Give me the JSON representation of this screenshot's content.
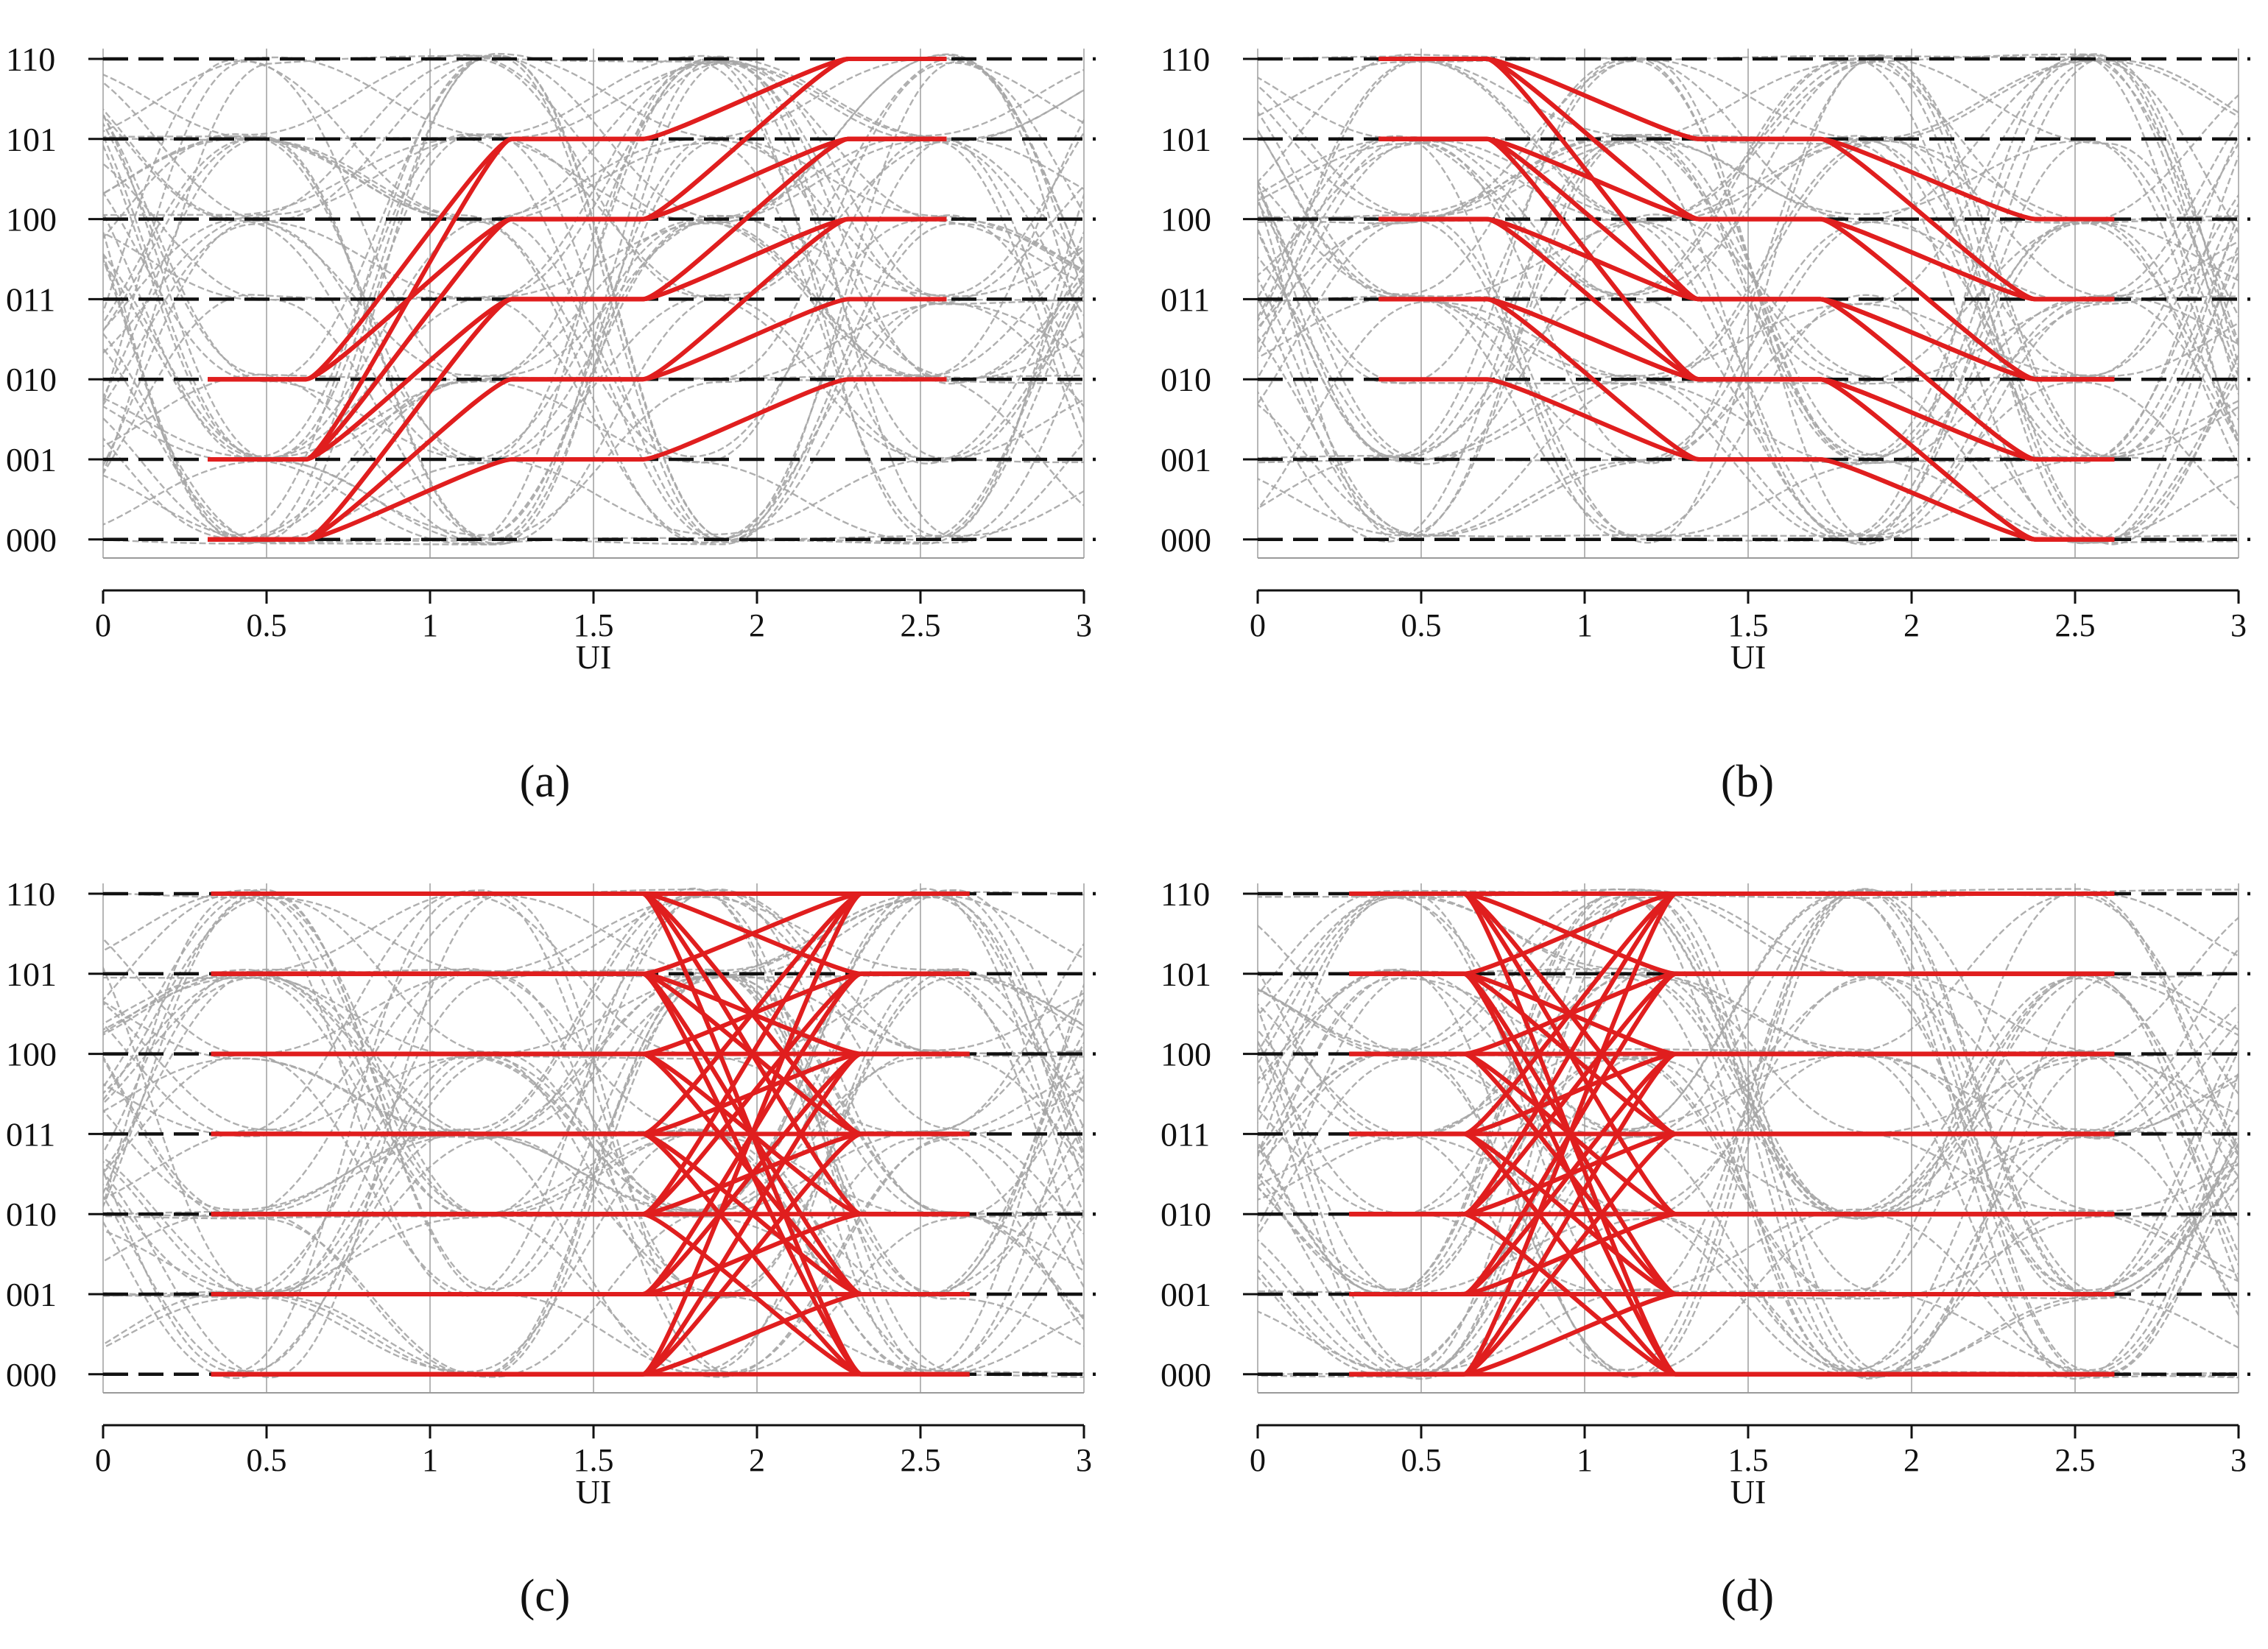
{
  "figure": {
    "captions": [
      "(a)",
      "(b)",
      "(c)",
      "(d)"
    ]
  },
  "chart_data": [
    {
      "panel": "(a)",
      "type": "line",
      "title": "",
      "xlabel": "UI",
      "ylabel": "",
      "xlim": [
        0,
        3
      ],
      "xticks": [
        0,
        0.5,
        1,
        1.5,
        2,
        2.5,
        3
      ],
      "xtick_labels": [
        "0",
        "0.5",
        "1",
        "1.5",
        "2",
        "2.5",
        "3"
      ],
      "ylevels": [
        0,
        1,
        2,
        3,
        4,
        5,
        6
      ],
      "ytick_labels": [
        "000",
        "001",
        "010",
        "011",
        "100",
        "101",
        "110"
      ],
      "ylim": [
        -0.28,
        6.1
      ],
      "background": "eye diagram (gray dashed traces)",
      "highlight_color": "#e01e1e",
      "transition_a": [
        0.62,
        1.25
      ],
      "transition_b": [
        1.65,
        2.28
      ],
      "start_x": 0.32,
      "end_x": 2.58,
      "paths": [
        [
          0,
          1,
          2
        ],
        [
          0,
          2,
          3
        ],
        [
          0,
          2,
          4
        ],
        [
          0,
          3,
          4
        ],
        [
          0,
          3,
          5
        ],
        [
          1,
          3,
          4
        ],
        [
          1,
          3,
          5
        ],
        [
          1,
          4,
          5
        ],
        [
          1,
          4,
          6
        ],
        [
          1,
          5,
          6
        ],
        [
          2,
          4,
          5
        ],
        [
          2,
          4,
          6
        ],
        [
          2,
          5,
          6
        ]
      ]
    },
    {
      "panel": "(b)",
      "type": "line",
      "title": "",
      "xlabel": "UI",
      "ylabel": "",
      "xlim": [
        0,
        3
      ],
      "xticks": [
        0,
        0.5,
        1,
        1.5,
        2,
        2.5,
        3
      ],
      "xtick_labels": [
        "0",
        "0.5",
        "1",
        "1.5",
        "2",
        "2.5",
        "3"
      ],
      "ylevels": [
        0,
        1,
        2,
        3,
        4,
        5,
        6
      ],
      "ytick_labels": [
        "000",
        "001",
        "010",
        "011",
        "100",
        "101",
        "110"
      ],
      "ylim": [
        -0.28,
        6.1
      ],
      "background": "eye diagram (gray dashed traces)",
      "highlight_color": "#e01e1e",
      "transition_a": [
        0.7,
        1.35
      ],
      "transition_b": [
        1.72,
        2.38
      ],
      "start_x": 0.37,
      "end_x": 2.62,
      "paths": [
        [
          6,
          5,
          4
        ],
        [
          6,
          5,
          3
        ],
        [
          6,
          4,
          3
        ],
        [
          6,
          4,
          2
        ],
        [
          6,
          3,
          2
        ],
        [
          5,
          4,
          3
        ],
        [
          5,
          4,
          2
        ],
        [
          5,
          3,
          2
        ],
        [
          5,
          3,
          1
        ],
        [
          5,
          2,
          1
        ],
        [
          4,
          3,
          2
        ],
        [
          4,
          3,
          1
        ],
        [
          4,
          2,
          1
        ],
        [
          4,
          2,
          0
        ],
        [
          3,
          2,
          1
        ],
        [
          3,
          2,
          0
        ],
        [
          3,
          1,
          0
        ],
        [
          2,
          1,
          0
        ]
      ]
    },
    {
      "panel": "(c)",
      "type": "line",
      "title": "",
      "xlabel": "UI",
      "ylabel": "",
      "xlim": [
        0,
        3
      ],
      "xticks": [
        0,
        0.5,
        1,
        1.5,
        2,
        2.5,
        3
      ],
      "xtick_labels": [
        "0",
        "0.5",
        "1",
        "1.5",
        "2",
        "2.5",
        "3"
      ],
      "ylevels": [
        0,
        1,
        2,
        3,
        4,
        5,
        6
      ],
      "ytick_labels": [
        "000",
        "001",
        "010",
        "011",
        "100",
        "101",
        "110"
      ],
      "ylim": [
        -0.28,
        6.1
      ],
      "background": "eye diagram (gray dashed traces)",
      "highlight_color": "#e01e1e",
      "transition": [
        1.65,
        2.32
      ],
      "start_x": 0.33,
      "end_x": 2.65,
      "pairs": [
        [
          6,
          6
        ],
        [
          6,
          5
        ],
        [
          6,
          3
        ],
        [
          6,
          2
        ],
        [
          6,
          0
        ],
        [
          5,
          6
        ],
        [
          5,
          4
        ],
        [
          5,
          3
        ],
        [
          5,
          1
        ],
        [
          5,
          0
        ],
        [
          4,
          5
        ],
        [
          4,
          4
        ],
        [
          4,
          2
        ],
        [
          4,
          1
        ],
        [
          3,
          6
        ],
        [
          3,
          4
        ],
        [
          3,
          3
        ],
        [
          3,
          1
        ],
        [
          3,
          0
        ],
        [
          2,
          6
        ],
        [
          2,
          5
        ],
        [
          2,
          3
        ],
        [
          2,
          2
        ],
        [
          2,
          0
        ],
        [
          1,
          5
        ],
        [
          1,
          4
        ],
        [
          1,
          2
        ],
        [
          1,
          1
        ],
        [
          0,
          6
        ],
        [
          0,
          4
        ],
        [
          0,
          3
        ],
        [
          0,
          1
        ],
        [
          0,
          0
        ]
      ]
    },
    {
      "panel": "(d)",
      "type": "line",
      "title": "",
      "xlabel": "UI",
      "ylabel": "",
      "xlim": [
        0,
        3
      ],
      "xticks": [
        0,
        0.5,
        1,
        1.5,
        2,
        2.5,
        3
      ],
      "xtick_labels": [
        "0",
        "0.5",
        "1",
        "1.5",
        "2",
        "2.5",
        "3"
      ],
      "ylevels": [
        0,
        1,
        2,
        3,
        4,
        5,
        6
      ],
      "ytick_labels": [
        "000",
        "001",
        "010",
        "011",
        "100",
        "101",
        "110"
      ],
      "ylim": [
        -0.28,
        6.1
      ],
      "background": "eye diagram (gray dashed traces)",
      "highlight_color": "#e01e1e",
      "transition": [
        0.63,
        1.28
      ],
      "start_x": 0.28,
      "end_x": 2.62,
      "pairs": [
        [
          6,
          6
        ],
        [
          6,
          5
        ],
        [
          6,
          3
        ],
        [
          6,
          2
        ],
        [
          6,
          0
        ],
        [
          5,
          6
        ],
        [
          5,
          4
        ],
        [
          5,
          3
        ],
        [
          5,
          1
        ],
        [
          5,
          0
        ],
        [
          4,
          5
        ],
        [
          4,
          4
        ],
        [
          4,
          2
        ],
        [
          4,
          1
        ],
        [
          3,
          6
        ],
        [
          3,
          4
        ],
        [
          3,
          3
        ],
        [
          3,
          1
        ],
        [
          3,
          0
        ],
        [
          2,
          6
        ],
        [
          2,
          5
        ],
        [
          2,
          3
        ],
        [
          2,
          2
        ],
        [
          2,
          0
        ],
        [
          1,
          5
        ],
        [
          1,
          4
        ],
        [
          1,
          2
        ],
        [
          1,
          1
        ],
        [
          0,
          6
        ],
        [
          0,
          4
        ],
        [
          0,
          3
        ],
        [
          0,
          1
        ],
        [
          0,
          0
        ]
      ]
    }
  ]
}
